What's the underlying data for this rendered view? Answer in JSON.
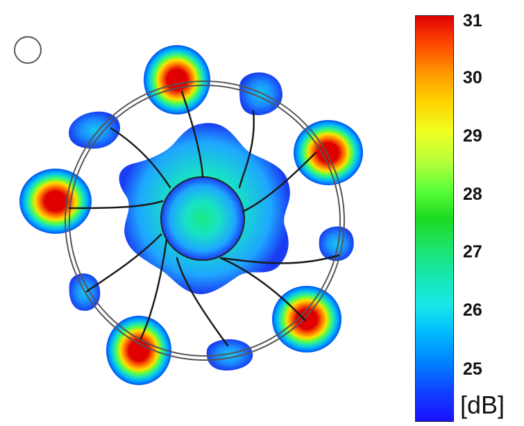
{
  "colorbar": {
    "ticks": [
      "31",
      "30",
      "29",
      "28",
      "27",
      "26",
      "25"
    ],
    "unit": "[dB]",
    "colors": [
      "#e00000",
      "#ff4a00",
      "#ff9900",
      "#ffd400",
      "#f0ff22",
      "#b8ff3a",
      "#5dff3a",
      "#1bdb1f",
      "#1ce36b",
      "#18e7b2",
      "#16e8e8",
      "#00b8ff",
      "#0080ff",
      "#1040ff",
      "#1a10ff"
    ]
  },
  "diagram": {
    "ring_color": "#555555",
    "line_color": "#1a1a1a",
    "hotspot_colors": [
      "#e00000",
      "#ff7a00",
      "#ffe000",
      "#60ff40",
      "#19e0c0",
      "#00a8ff",
      "#0050f0"
    ],
    "center_colors": [
      "#19e884",
      "#18e3c3",
      "#1ea6ff",
      "#1a3cf2"
    ]
  }
}
